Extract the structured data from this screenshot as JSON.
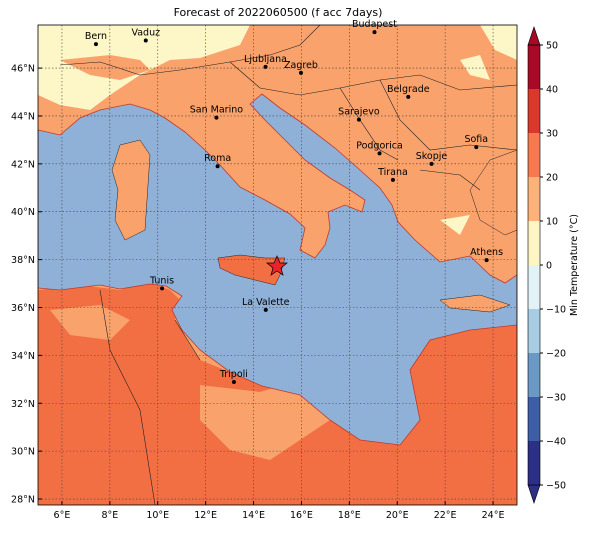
{
  "chart_data": {
    "type": "map",
    "title": "Forecast of 2022060500 (f acc 7days)",
    "xlim": [
      5.0,
      25.0
    ],
    "ylim": [
      27.75,
      47.8
    ],
    "xticks": [
      {
        "value": 6,
        "label": "6°E"
      },
      {
        "value": 8,
        "label": "8°E"
      },
      {
        "value": 10,
        "label": "10°E"
      },
      {
        "value": 12,
        "label": "12°E"
      },
      {
        "value": 14,
        "label": "14°E"
      },
      {
        "value": 16,
        "label": "16°E"
      },
      {
        "value": 18,
        "label": "18°E"
      },
      {
        "value": 20,
        "label": "20°E"
      },
      {
        "value": 22,
        "label": "22°E"
      },
      {
        "value": 24,
        "label": "24°E"
      }
    ],
    "yticks": [
      {
        "value": 28,
        "label": "28°N"
      },
      {
        "value": 30,
        "label": "30°N"
      },
      {
        "value": 32,
        "label": "32°N"
      },
      {
        "value": 34,
        "label": "34°N"
      },
      {
        "value": 36,
        "label": "36°N"
      },
      {
        "value": 38,
        "label": "38°N"
      },
      {
        "value": 40,
        "label": "40°N"
      },
      {
        "value": 42,
        "label": "42°N"
      },
      {
        "value": 44,
        "label": "44°N"
      },
      {
        "value": 46,
        "label": "46°N"
      }
    ],
    "grid": true,
    "cities": [
      {
        "name": "Bern",
        "x": 7.42,
        "y": 47.0
      },
      {
        "name": "Vaduz",
        "x": 9.5,
        "y": 47.15
      },
      {
        "name": "Budapest",
        "x": 19.05,
        "y": 47.5
      },
      {
        "name": "Ljubljana",
        "x": 14.5,
        "y": 46.05
      },
      {
        "name": "Zagreb",
        "x": 15.98,
        "y": 45.8
      },
      {
        "name": "Belgrade",
        "x": 20.46,
        "y": 44.8
      },
      {
        "name": "San Marino",
        "x": 12.45,
        "y": 43.93
      },
      {
        "name": "Sarajevo",
        "x": 18.4,
        "y": 43.85
      },
      {
        "name": "Sofia",
        "x": 23.3,
        "y": 42.7
      },
      {
        "name": "Podgorica",
        "x": 19.26,
        "y": 42.44
      },
      {
        "name": "Skopje",
        "x": 21.43,
        "y": 42.0
      },
      {
        "name": "Roma",
        "x": 12.5,
        "y": 41.9
      },
      {
        "name": "Tirana",
        "x": 19.82,
        "y": 41.33
      },
      {
        "name": "Athens",
        "x": 23.73,
        "y": 37.98
      },
      {
        "name": "Tunis",
        "x": 10.18,
        "y": 36.8
      },
      {
        "name": "La Valette",
        "x": 14.51,
        "y": 35.9
      },
      {
        "name": "Tripoli",
        "x": 13.18,
        "y": 32.89
      }
    ],
    "colorbar": {
      "label": "Min Temperature (°C)",
      "ticks": [
        {
          "value": -50,
          "label": "−50"
        },
        {
          "value": -40,
          "label": "−40"
        },
        {
          "value": -30,
          "label": "−30"
        },
        {
          "value": -20,
          "label": "−20"
        },
        {
          "value": -10,
          "label": "−10"
        },
        0,
        10,
        20,
        30,
        40,
        50
      ],
      "colors": [
        "#2b2f85",
        "#3d5ea6",
        "#6c98c6",
        "#a8cde3",
        "#e2f2f6",
        "#fdf6c3",
        "#fdb27a",
        "#f57b4f",
        "#d9392a",
        "#a60a26"
      ]
    }
  }
}
